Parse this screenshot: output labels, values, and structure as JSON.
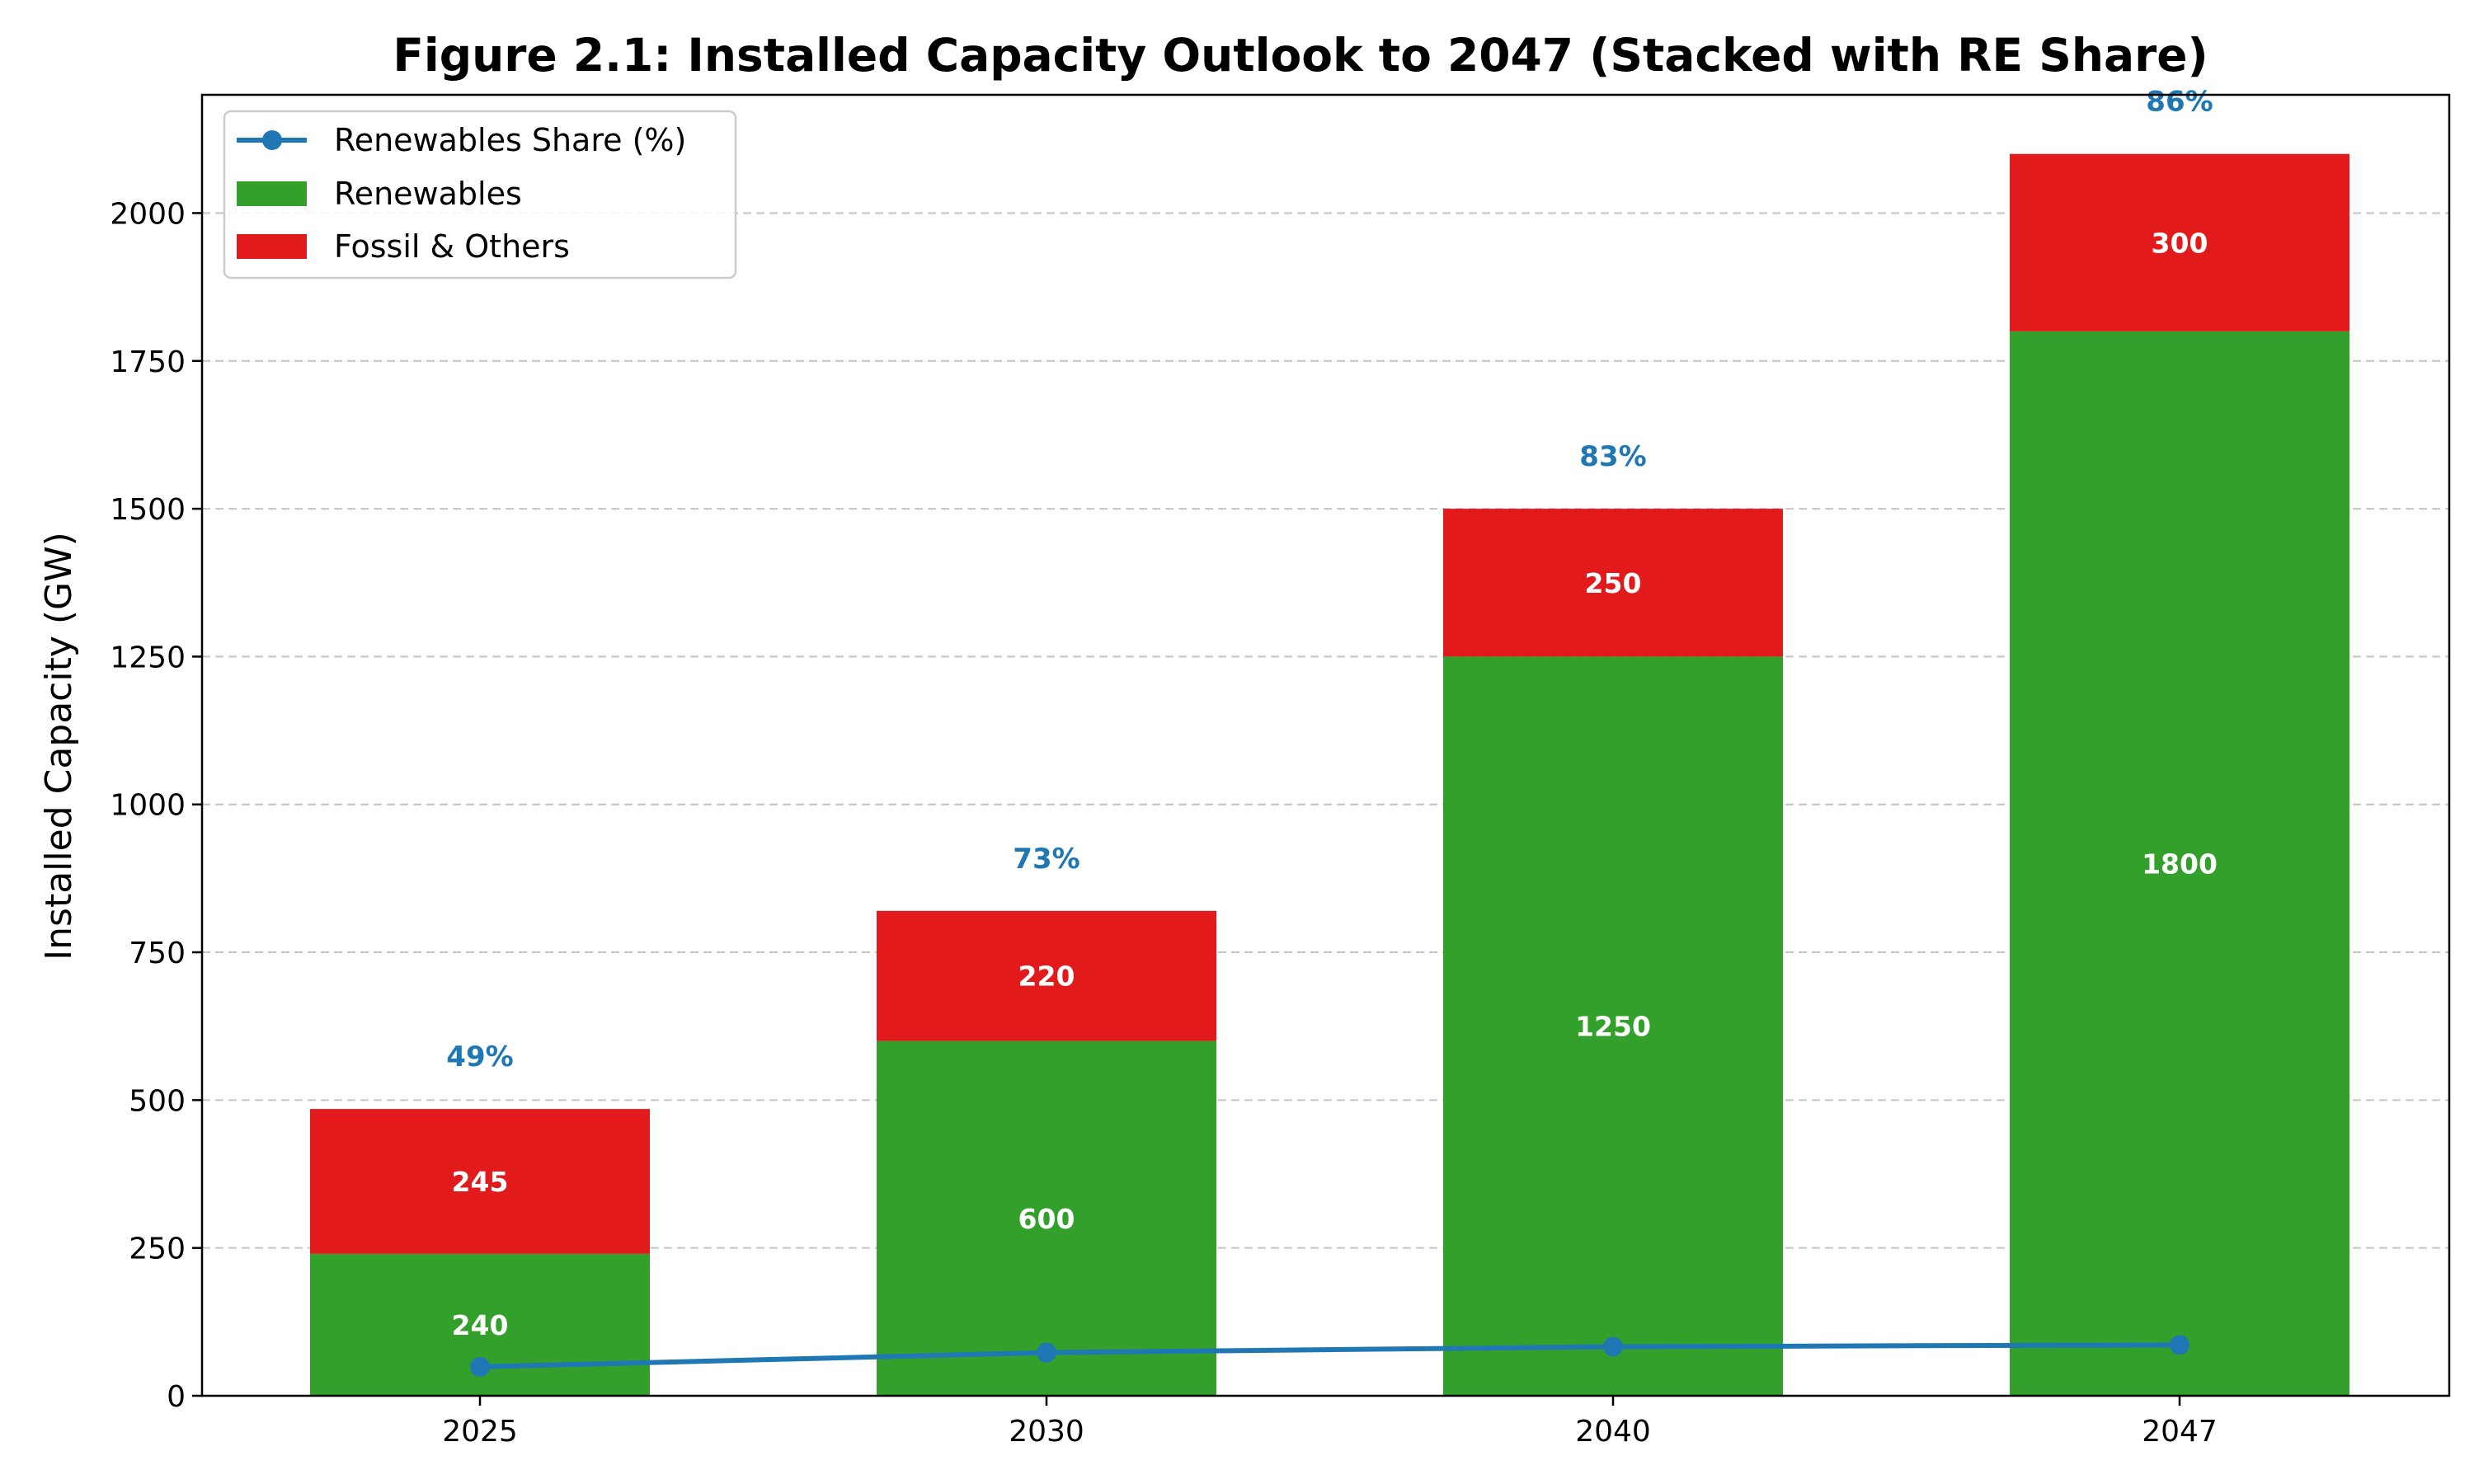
{
  "chart_data": {
    "type": "bar",
    "stacked": true,
    "title": "Figure 2.1: Installed Capacity Outlook to 2047 (Stacked with RE Share)",
    "xlabel": "",
    "ylabel": "Installed Capacity (GW)",
    "categories": [
      "2025",
      "2030",
      "2040",
      "2047"
    ],
    "ylim": [
      0,
      2200
    ],
    "yticks": [
      0,
      250,
      500,
      750,
      1000,
      1250,
      1500,
      1750,
      2000
    ],
    "grid": "y-dashed",
    "legend_position": "top-left",
    "series": [
      {
        "name": "Renewables",
        "values": [
          240,
          600,
          1250,
          1800
        ],
        "color": "#33a02c"
      },
      {
        "name": "Fossil & Others",
        "values": [
          245,
          220,
          250,
          300
        ],
        "color": "#e31a1c"
      }
    ],
    "line_series": {
      "name": "Renewables Share (%)",
      "values": [
        49,
        73,
        83,
        86
      ],
      "labels": [
        "49%",
        "73%",
        "83%",
        "86%"
      ],
      "color": "#1f77b4"
    }
  }
}
